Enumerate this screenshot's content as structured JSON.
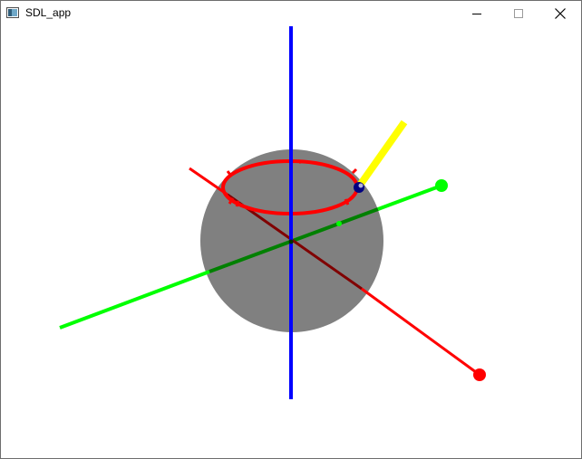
{
  "window": {
    "title": "SDL_app",
    "app_icon": "window-app-icon",
    "controls": {
      "minimize_icon": "minimize-icon",
      "maximize_icon": "maximize-icon",
      "close_icon": "close-icon"
    }
  },
  "scene": {
    "background": "#ffffff",
    "sphere_color": "#808080",
    "x_axis_color": "#ff0000",
    "x_axis_dark_color": "#800000",
    "y_axis_color": "#00ff00",
    "y_axis_dark_color": "#008000",
    "z_axis_color": "#0000ff",
    "ring_color": "#ff0000",
    "pointer_color": "#ffff00",
    "pointer_marker_color": "#000080"
  }
}
